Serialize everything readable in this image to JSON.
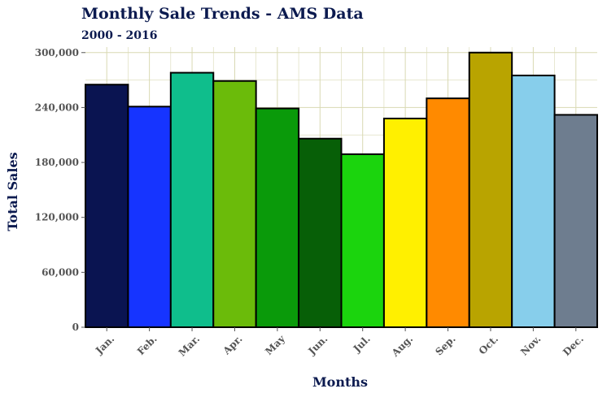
{
  "chart_data": {
    "type": "bar",
    "title": "Monthly Sale Trends - AMS Data",
    "subtitle": "2000 - 2016",
    "xlabel": "Months",
    "ylabel": "Total Sales",
    "categories": [
      "Jan.",
      "Feb.",
      "Mar.",
      "Apr.",
      "May",
      "Jun.",
      "Jul.",
      "Aug.",
      "Sep.",
      "Oct.",
      "Nov.",
      "Dec."
    ],
    "values": [
      265000,
      241000,
      278000,
      269000,
      239000,
      206000,
      189000,
      228000,
      250000,
      300000,
      275000,
      232000
    ],
    "colors": [
      "#0a1451",
      "#1634ff",
      "#0fbe8c",
      "#6bbb0a",
      "#0a9a0a",
      "#075f07",
      "#1bd40d",
      "#fff000",
      "#ff8a00",
      "#b9a400",
      "#87ceeb",
      "#6e7d8f"
    ],
    "ylim": [
      0,
      306000
    ],
    "yticks": [
      0,
      60000,
      120000,
      180000,
      240000,
      300000
    ],
    "ytick_labels": [
      "0",
      "60,000",
      "120,000",
      "180,000",
      "240,000",
      "300,000"
    ],
    "grid": true,
    "grid_color": "#d9d9b3",
    "legend": "none"
  }
}
